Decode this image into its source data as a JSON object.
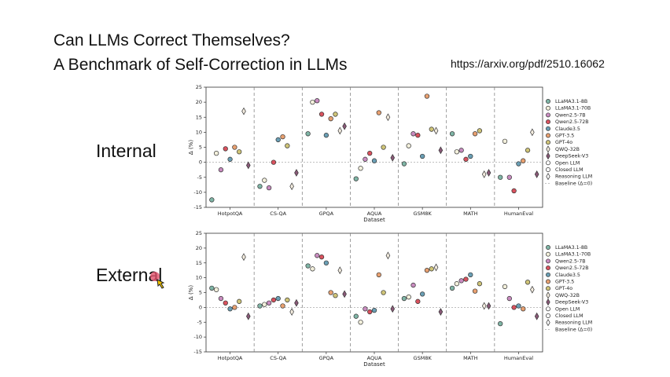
{
  "slide": {
    "title_lines": [
      "Can LLMs Correct Themselves?",
      "A Benchmark of Self-Correction in LLMs"
    ],
    "url": "https://arxiv.org/pdf/2510.16062"
  },
  "chart_data": [
    {
      "type": "scatter",
      "panel_label": "Internal",
      "xlabel": "Dataset",
      "ylabel": "Δ (%)",
      "categories": [
        "HotpotQA",
        "CS-QA",
        "GPQA",
        "AQUA",
        "GSM8K",
        "MATH",
        "HumanEval"
      ],
      "ylim": [
        -15,
        25
      ],
      "yticks": [
        -15,
        -10,
        -5,
        0,
        5,
        10,
        15,
        20,
        25
      ],
      "series": [
        {
          "name": "LLaMA3.1-8B",
          "color": "#7fb5a6",
          "marker": "circle",
          "values": [
            -12.5,
            -8,
            9.5,
            -5.5,
            -0.5,
            9.5,
            -5
          ]
        },
        {
          "name": "LLaMA3.1-70B",
          "color": "#f3f0dc",
          "marker": "circle",
          "values": [
            3,
            -6,
            20,
            -2,
            5.5,
            3.5,
            7
          ]
        },
        {
          "name": "Qwen2.5-7B",
          "color": "#c98cc0",
          "marker": "circle",
          "values": [
            -2.5,
            -8.5,
            20.5,
            1,
            9.5,
            4,
            -5
          ]
        },
        {
          "name": "Qwen2.5-72B",
          "color": "#d9525e",
          "marker": "circle",
          "values": [
            4.5,
            0,
            16,
            3,
            9,
            1,
            -9.5
          ]
        },
        {
          "name": "Claude3.5",
          "color": "#6a9fb5",
          "marker": "circle",
          "values": [
            1,
            7.5,
            9,
            0.5,
            2,
            2,
            -0.5
          ]
        },
        {
          "name": "GPT-3.5",
          "color": "#e8a070",
          "marker": "circle",
          "values": [
            5,
            8.5,
            14.5,
            16.5,
            22,
            9.5,
            0.5
          ]
        },
        {
          "name": "GPT-4o",
          "color": "#cfc478",
          "marker": "circle",
          "values": [
            3.5,
            5.5,
            16,
            5,
            11,
            10.5,
            4
          ]
        },
        {
          "name": "QWQ-32B",
          "color": "#f3ecdf",
          "marker": "diamond",
          "values": [
            17,
            -8,
            10.5,
            15,
            10.5,
            -4,
            10
          ]
        },
        {
          "name": "DeepSeek-V3",
          "color": "#8a5a78",
          "marker": "diamond",
          "values": [
            -1,
            -3.5,
            12,
            1.5,
            4,
            -3.5,
            -4
          ]
        }
      ],
      "legend_notes": [
        {
          "label": "Open LLM",
          "marker": "circle"
        },
        {
          "label": "Closed LLM",
          "marker": "circle"
        },
        {
          "label": "Reasoning LLM",
          "marker": "diamond"
        }
      ],
      "baseline_label": "Baseline (Δ=0)"
    },
    {
      "type": "scatter",
      "panel_label": "External",
      "xlabel": "Dataset",
      "ylabel": "Δ (%)",
      "categories": [
        "HotpotQA",
        "CS-QA",
        "GPQA",
        "AQUA",
        "GSM8K",
        "MATH",
        "HumanEval"
      ],
      "ylim": [
        -15,
        25
      ],
      "yticks": [
        -15,
        -10,
        -5,
        0,
        5,
        10,
        15,
        20,
        25
      ],
      "series": [
        {
          "name": "LLaMA3.1-8B",
          "color": "#7fb5a6",
          "marker": "circle",
          "values": [
            6.5,
            0.5,
            14,
            -3,
            3,
            6.5,
            -5.5
          ]
        },
        {
          "name": "LLaMA3.1-70B",
          "color": "#f3f0dc",
          "marker": "circle",
          "values": [
            6,
            1,
            13,
            -5,
            3.5,
            8,
            7
          ]
        },
        {
          "name": "Qwen2.5-7B",
          "color": "#c98cc0",
          "marker": "circle",
          "values": [
            3,
            1.5,
            17.5,
            -0.5,
            7.5,
            9,
            3
          ]
        },
        {
          "name": "Qwen2.5-72B",
          "color": "#d9525e",
          "marker": "circle",
          "values": [
            1.5,
            2.5,
            17,
            -1.5,
            2,
            9.5,
            0
          ]
        },
        {
          "name": "Claude3.5",
          "color": "#6a9fb5",
          "marker": "circle",
          "values": [
            -0.5,
            3,
            15,
            -1,
            4.5,
            11,
            0.5
          ]
        },
        {
          "name": "GPT-3.5",
          "color": "#e8a070",
          "marker": "circle",
          "values": [
            0,
            0.5,
            5,
            11,
            12.5,
            5.5,
            -0.5
          ]
        },
        {
          "name": "GPT-4o",
          "color": "#cfc478",
          "marker": "circle",
          "values": [
            2,
            2.5,
            4,
            5,
            13,
            8,
            8.5
          ]
        },
        {
          "name": "QWQ-32B",
          "color": "#f3ecdf",
          "marker": "diamond",
          "values": [
            17,
            -1.5,
            12.5,
            17.5,
            13.5,
            0.5,
            6
          ]
        },
        {
          "name": "DeepSeek-V3",
          "color": "#8a5a78",
          "marker": "diamond",
          "values": [
            -3,
            1.5,
            4.5,
            -0.5,
            -1.5,
            0.5,
            -3
          ]
        }
      ],
      "legend_notes": [
        {
          "label": "Open LLM",
          "marker": "circle"
        },
        {
          "label": "Closed LLM",
          "marker": "circle"
        },
        {
          "label": "Reasoning LLM",
          "marker": "diamond"
        }
      ],
      "baseline_label": "Baseline (Δ=0)"
    }
  ]
}
